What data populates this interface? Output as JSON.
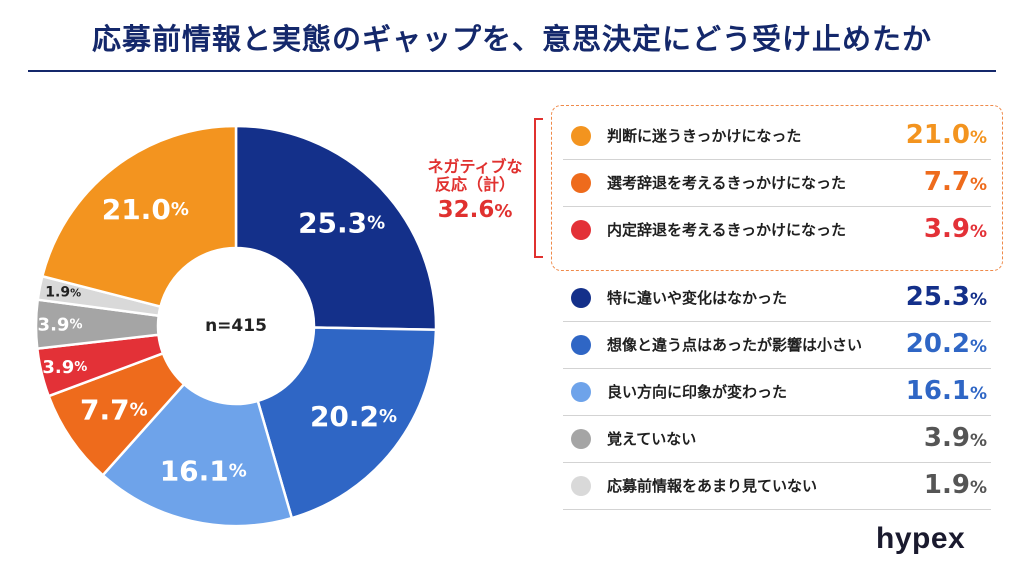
{
  "title": "応募前情報と実態のギャップを、意思決定にどう受け止めたか",
  "chart_data": {
    "type": "pie",
    "center_label": "n=415",
    "slices": [
      {
        "label": "特に違いや変化はなかった",
        "value": 25.3,
        "display": "25.3",
        "color": "#14308a"
      },
      {
        "label": "想像と違う点はあったが影響は小さい",
        "value": 20.2,
        "display": "20.2",
        "color": "#2f66c5"
      },
      {
        "label": "良い方向に印象が変わった",
        "value": 16.1,
        "display": "16.1",
        "color": "#6ea3ea"
      },
      {
        "label": "選考辞退を考えるきっかけになった",
        "value": 7.7,
        "display": "7.7",
        "color": "#ee6b1c"
      },
      {
        "label": "内定辞退を考えるきっかけになった",
        "value": 3.9,
        "display": "3.9",
        "color": "#e33137"
      },
      {
        "label": "覚えていない",
        "value": 3.9,
        "display": "3.9",
        "color": "#a5a5a5"
      },
      {
        "label": "応募前情報をあまり見ていない",
        "value": 1.9,
        "display": "1.9",
        "color": "#d9d9d9"
      },
      {
        "label": "判断に迷うきっかけになった",
        "value": 21.0,
        "display": "21.0",
        "color": "#f3941f"
      }
    ],
    "percent_sign": "%",
    "negative_group": {
      "label_line1": "ネガティブな",
      "label_line2": "反応（計）",
      "value": "32.6",
      "color": "#e0312f"
    }
  },
  "legend": [
    {
      "label": "判断に迷うきっかけになった",
      "value": "21.0",
      "color": "#f3941f",
      "value_color": "#f3941f"
    },
    {
      "label": "選考辞退を考えるきっかけになった",
      "value": "7.7",
      "color": "#ee6b1c",
      "value_color": "#ee6b1c"
    },
    {
      "label": "内定辞退を考えるきっかけになった",
      "value": "3.9",
      "color": "#e33137",
      "value_color": "#e33137"
    },
    {
      "label": "特に違いや変化はなかった",
      "value": "25.3",
      "color": "#14308a",
      "value_color": "#14308a"
    },
    {
      "label": "想像と違う点はあったが影響は小さい",
      "value": "20.2",
      "color": "#2f66c5",
      "value_color": "#2f66c5"
    },
    {
      "label": "良い方向に印象が変わった",
      "value": "16.1",
      "color": "#6ea3ea",
      "value_color": "#2f66c5"
    },
    {
      "label": "覚えていない",
      "value": "3.9",
      "color": "#a5a5a5",
      "value_color": "#555555"
    },
    {
      "label": "応募前情報をあまり見ていない",
      "value": "1.9",
      "color": "#d9d9d9",
      "value_color": "#555555"
    }
  ],
  "logo": "hypex"
}
